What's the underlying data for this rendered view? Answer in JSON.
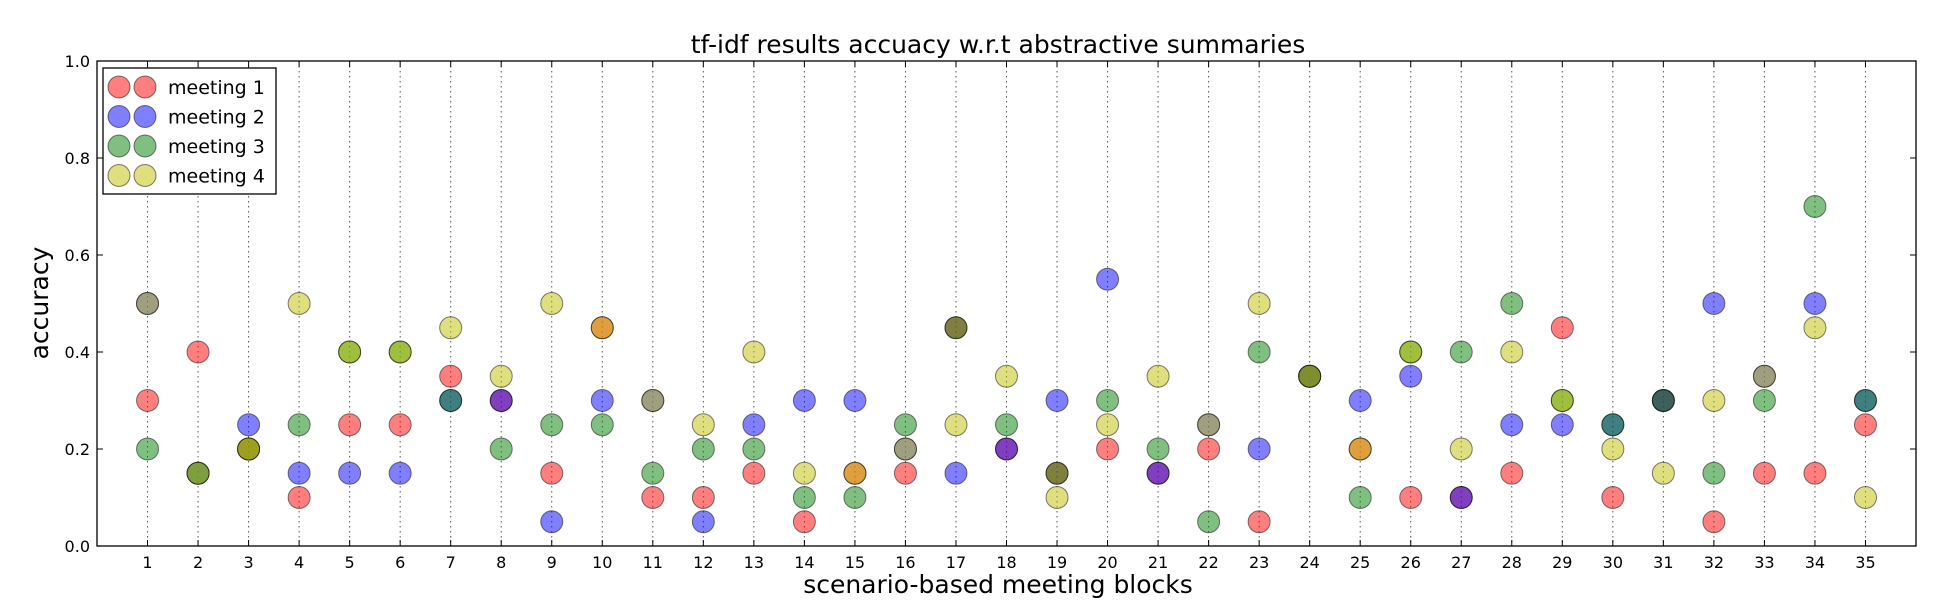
{
  "chart_data": {
    "type": "scatter",
    "title": "tf-idf results accuacy w.r.t abstractive summaries",
    "xlabel": "scenario-based meeting blocks",
    "ylabel": "accuracy",
    "xlim": [
      0,
      36
    ],
    "ylim": [
      0.0,
      1.0
    ],
    "x_ticks": [
      "1",
      "2",
      "3",
      "4",
      "5",
      "6",
      "7",
      "8",
      "9",
      "10",
      "11",
      "12",
      "13",
      "14",
      "15",
      "16",
      "17",
      "18",
      "19",
      "20",
      "21",
      "22",
      "23",
      "24",
      "25",
      "26",
      "27",
      "28",
      "29",
      "30",
      "31",
      "32",
      "33",
      "34",
      "35"
    ],
    "y_ticks": [
      "0.0",
      "0.2",
      "0.4",
      "0.6",
      "0.8",
      "1.0"
    ],
    "vertical_grid": "dotted",
    "legend_position": "top-left",
    "series": [
      {
        "name": "meeting 1",
        "color": "#ff0000",
        "x": [
          1,
          2,
          3,
          4,
          5,
          6,
          7,
          8,
          9,
          10,
          11,
          12,
          13,
          14,
          15,
          16,
          17,
          18,
          19,
          20,
          21,
          22,
          23,
          24,
          25,
          26,
          27,
          28,
          29,
          30,
          31,
          32,
          33,
          34,
          35
        ],
        "values": [
          0.3,
          0.4,
          0.2,
          0.1,
          0.25,
          0.25,
          0.35,
          0.3,
          0.15,
          0.45,
          0.1,
          0.1,
          0.15,
          0.05,
          0.15,
          0.15,
          0.45,
          0.2,
          0.15,
          0.2,
          0.15,
          0.2,
          0.05,
          0.35,
          0.2,
          0.1,
          0.1,
          0.15,
          0.45,
          0.1,
          0.3,
          0.05,
          0.15,
          0.15,
          0.25
        ]
      },
      {
        "name": "meeting 2",
        "color": "#0000ff",
        "x": [
          1,
          2,
          3,
          4,
          5,
          6,
          7,
          8,
          9,
          10,
          11,
          12,
          13,
          14,
          15,
          16,
          17,
          18,
          19,
          20,
          21,
          22,
          23,
          24,
          25,
          26,
          27,
          28,
          29,
          30,
          31,
          32,
          33,
          34,
          35
        ],
        "values": [
          0.5,
          0.15,
          0.25,
          0.15,
          0.15,
          0.15,
          0.3,
          0.3,
          0.05,
          0.3,
          0.3,
          0.05,
          0.25,
          0.3,
          0.3,
          0.2,
          0.15,
          0.2,
          0.3,
          0.55,
          0.15,
          0.25,
          0.2,
          0.35,
          0.3,
          0.35,
          0.1,
          0.25,
          0.25,
          0.25,
          0.3,
          0.5,
          0.35,
          0.5,
          0.3
        ]
      },
      {
        "name": "meeting 3",
        "color": "#008000",
        "x": [
          1,
          2,
          3,
          4,
          5,
          6,
          7,
          8,
          9,
          10,
          11,
          12,
          13,
          14,
          15,
          16,
          17,
          18,
          19,
          20,
          21,
          22,
          23,
          24,
          25,
          26,
          27,
          28,
          29,
          30,
          31,
          32,
          33,
          34,
          35
        ],
        "values": [
          0.2,
          0.15,
          0.2,
          0.25,
          0.4,
          0.4,
          0.3,
          0.2,
          0.25,
          0.25,
          0.15,
          0.2,
          0.2,
          0.1,
          0.1,
          0.25,
          0.45,
          0.25,
          0.15,
          0.3,
          0.2,
          0.05,
          0.4,
          0.35,
          0.1,
          0.4,
          0.4,
          0.5,
          0.3,
          0.25,
          0.3,
          0.15,
          0.3,
          0.7,
          0.3
        ]
      },
      {
        "name": "meeting 4",
        "color": "#bfbf00",
        "x": [
          1,
          2,
          3,
          4,
          5,
          6,
          7,
          8,
          9,
          10,
          11,
          12,
          13,
          14,
          15,
          16,
          17,
          18,
          19,
          20,
          21,
          22,
          23,
          24,
          25,
          26,
          27,
          28,
          29,
          30,
          31,
          32,
          33,
          34,
          35
        ],
        "values": [
          0.5,
          0.15,
          0.2,
          0.5,
          0.4,
          0.4,
          0.45,
          0.35,
          0.5,
          0.45,
          0.3,
          0.25,
          0.4,
          0.15,
          0.15,
          0.2,
          0.25,
          0.35,
          0.1,
          0.25,
          0.35,
          0.25,
          0.5,
          0.35,
          0.2,
          0.4,
          0.2,
          0.4,
          0.3,
          0.2,
          0.15,
          0.3,
          0.35,
          0.45,
          0.1
        ]
      }
    ]
  }
}
